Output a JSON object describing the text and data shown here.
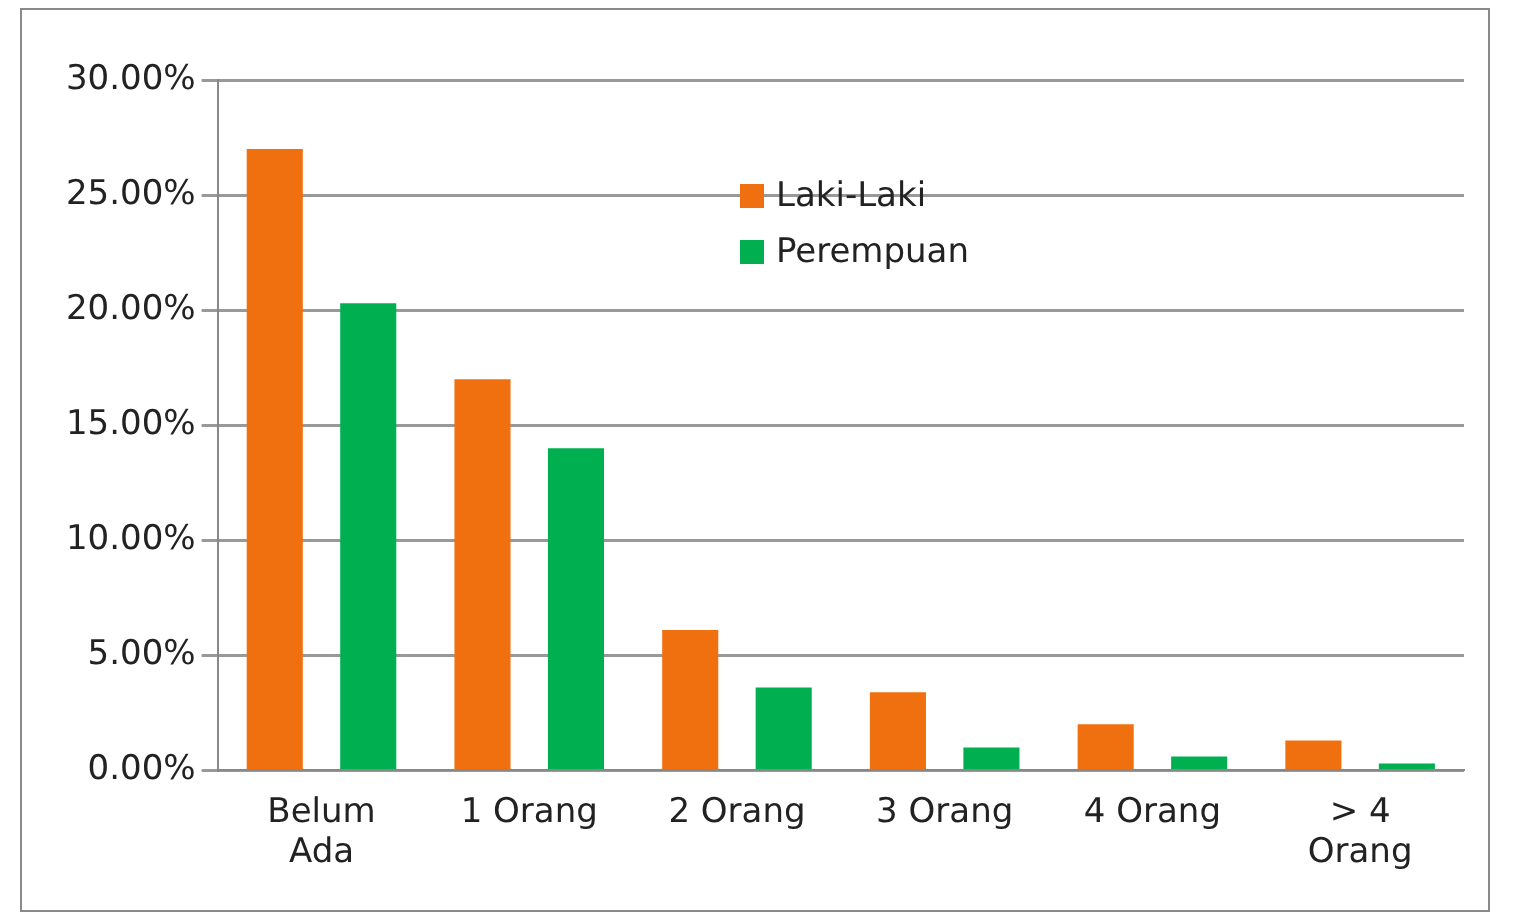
{
  "chart_data": {
    "type": "bar",
    "categories": [
      "Belum Ada",
      "1 Orang",
      "2 Orang",
      "3 Orang",
      "4 Orang",
      "> 4 Orang"
    ],
    "series": [
      {
        "name": "Laki-Laki",
        "color": "#f07010",
        "values": [
          27,
          17,
          6.1,
          3.4,
          2,
          1.3
        ]
      },
      {
        "name": "Perempuan",
        "color": "#00b050",
        "values": [
          20.3,
          14,
          3.6,
          1,
          0.6,
          0.3
        ]
      }
    ],
    "ylim": [
      0,
      30
    ],
    "yticks": [
      {
        "value": 0,
        "label": "0.00%"
      },
      {
        "value": 5,
        "label": "5.00%"
      },
      {
        "value": 10,
        "label": "10.00%"
      },
      {
        "value": 15,
        "label": "15.00%"
      },
      {
        "value": 20,
        "label": "20.00%"
      },
      {
        "value": 25,
        "label": "25.00%"
      },
      {
        "value": 30,
        "label": "30.00%"
      }
    ],
    "grid": "y",
    "legend": "top"
  }
}
